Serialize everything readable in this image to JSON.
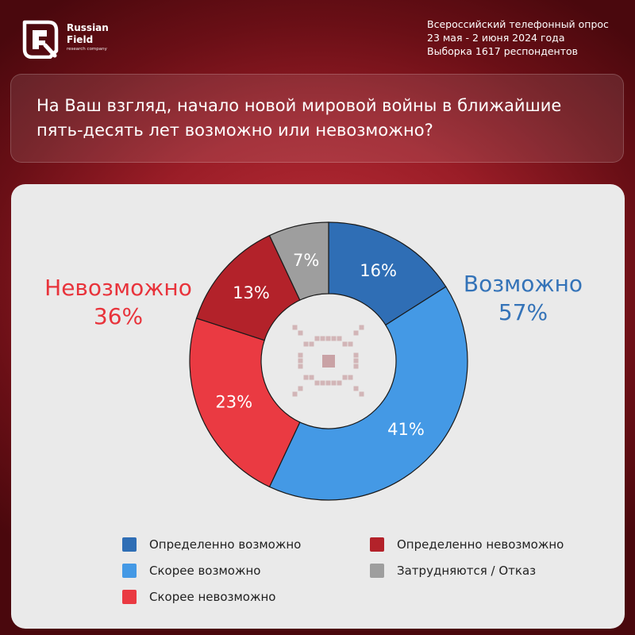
{
  "brand": {
    "line1": "Russian",
    "line2": "Field",
    "line3": "research company"
  },
  "meta": {
    "line1": "Всероссийский телефонный опрос",
    "line2": "23 мая - 2 июня 2024 года",
    "line3": "Выборка 1617 респондентов"
  },
  "question": {
    "line1": "На Ваш взгляд, начало новой мировой войны в ближайшие",
    "line2": "пять-десять лет возможно или невозможно?"
  },
  "groups": {
    "impossible": {
      "label": "Невозможно",
      "value": "36%",
      "color": "#e8333b"
    },
    "possible": {
      "label": "Возможно",
      "value": "57%",
      "color": "#3473b8"
    }
  },
  "chart_data": {
    "type": "pie",
    "donut": true,
    "slices": [
      {
        "label": "Определенно возможно",
        "value": 16,
        "text": "16%",
        "color": "#2f6eb5"
      },
      {
        "label": "Скорее возможно",
        "value": 41,
        "text": "41%",
        "color": "#4499e5"
      },
      {
        "label": "Скорее невозможно",
        "value": 23,
        "text": "23%",
        "color": "#ea3a42"
      },
      {
        "label": "Определенно невозможно",
        "value": 13,
        "text": "13%",
        "color": "#b3222a"
      },
      {
        "label": "Затрудняются / Отказ",
        "value": 7,
        "text": "7%",
        "color": "#9e9e9e"
      }
    ]
  },
  "legend": {
    "items": [
      {
        "label": "Определенно возможно",
        "color": "#2f6eb5"
      },
      {
        "label": "Скорее возможно",
        "color": "#4499e5"
      },
      {
        "label": "Скорее невозможно",
        "color": "#ea3a42"
      },
      {
        "label": "Определенно невозможно",
        "color": "#b3222a"
      },
      {
        "label": "Затрудняются / Отказ",
        "color": "#9e9e9e"
      }
    ]
  },
  "icon": {
    "center": "eye-icon",
    "logo": "russian-field-logo"
  }
}
